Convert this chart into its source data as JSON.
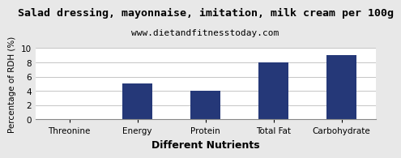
{
  "title": "Salad dressing, mayonnaise, imitation, milk cream per 100g",
  "subtitle": "www.dietandfitnesstoday.com",
  "categories": [
    "Threonine",
    "Energy",
    "Protein",
    "Total Fat",
    "Carbohydrate"
  ],
  "values": [
    0,
    5,
    4,
    8,
    9
  ],
  "bar_color": "#253878",
  "xlabel": "Different Nutrients",
  "ylabel": "Percentage of RDH (%)",
  "ylim": [
    0,
    10
  ],
  "yticks": [
    0,
    2,
    4,
    6,
    8,
    10
  ],
  "title_fontsize": 9.5,
  "subtitle_fontsize": 8,
  "xlabel_fontsize": 9,
  "ylabel_fontsize": 7.5,
  "tick_fontsize": 7.5,
  "background_color": "#e8e8e8",
  "plot_bg_color": "#ffffff",
  "bar_width": 0.45
}
